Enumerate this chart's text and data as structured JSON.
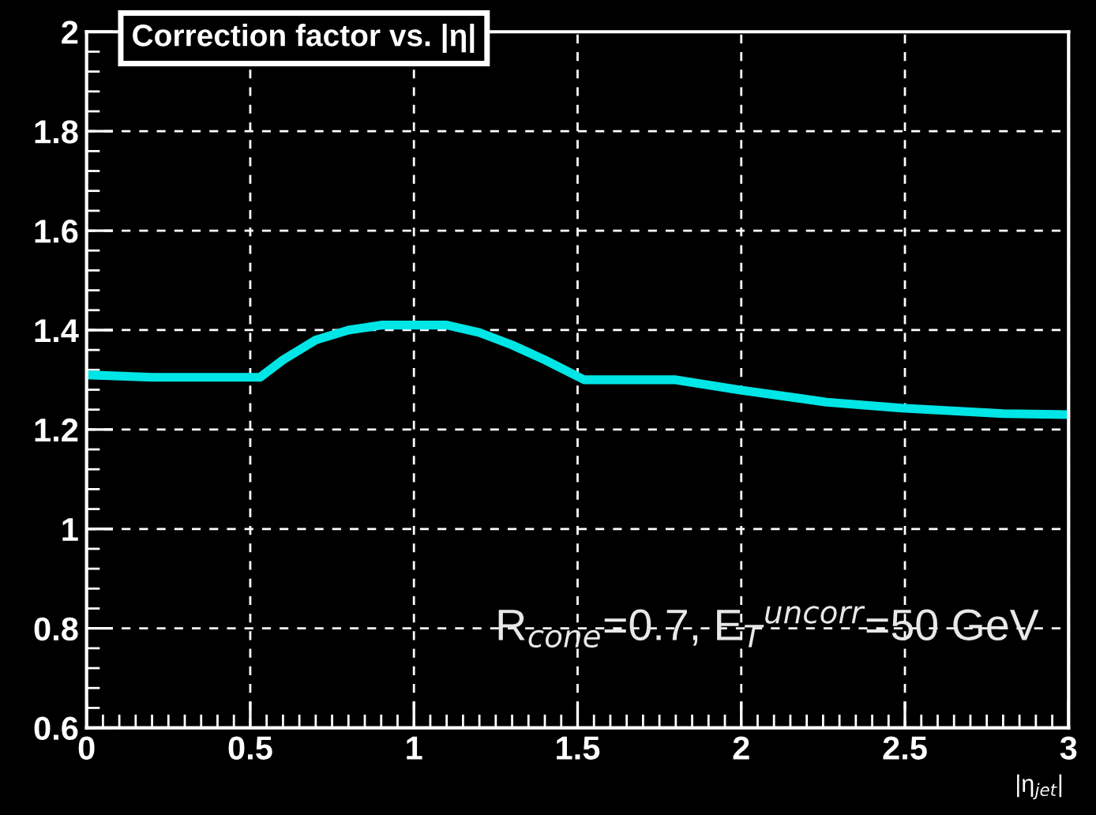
{
  "chart_data": {
    "type": "line",
    "title": "Correction factor vs. |η|",
    "xlabel": "|η$_{jet}$|",
    "annotations": [
      "R$_{cone}$=0.7, E$_{T}$$^{uncorr}$=50 GeV"
    ],
    "series": [
      {
        "color": "#00e5e5",
        "x": [
          0,
          0.2,
          0.4,
          0.53,
          0.6,
          0.7,
          0.8,
          0.9,
          1.0,
          1.1,
          1.2,
          1.3,
          1.4,
          1.52,
          1.65,
          1.8,
          1.99,
          2.26,
          2.49,
          2.8,
          3.0
        ],
        "values": [
          1.31,
          1.305,
          1.305,
          1.305,
          1.34,
          1.38,
          1.4,
          1.41,
          1.41,
          1.41,
          1.395,
          1.37,
          1.34,
          1.3,
          1.3,
          1.3,
          1.28,
          1.255,
          1.243,
          1.232,
          1.23
        ]
      }
    ],
    "xlim": [
      0,
      3
    ],
    "xticks": [
      0,
      0.5,
      1,
      1.5,
      2,
      2.5,
      3
    ],
    "ylim": [
      0.6,
      2
    ],
    "yticks": [
      0.6,
      0.8,
      1,
      1.2,
      1.4,
      1.6,
      1.8,
      2
    ],
    "grid": true,
    "legend": false,
    "marker": "none",
    "line_style": "solid"
  }
}
